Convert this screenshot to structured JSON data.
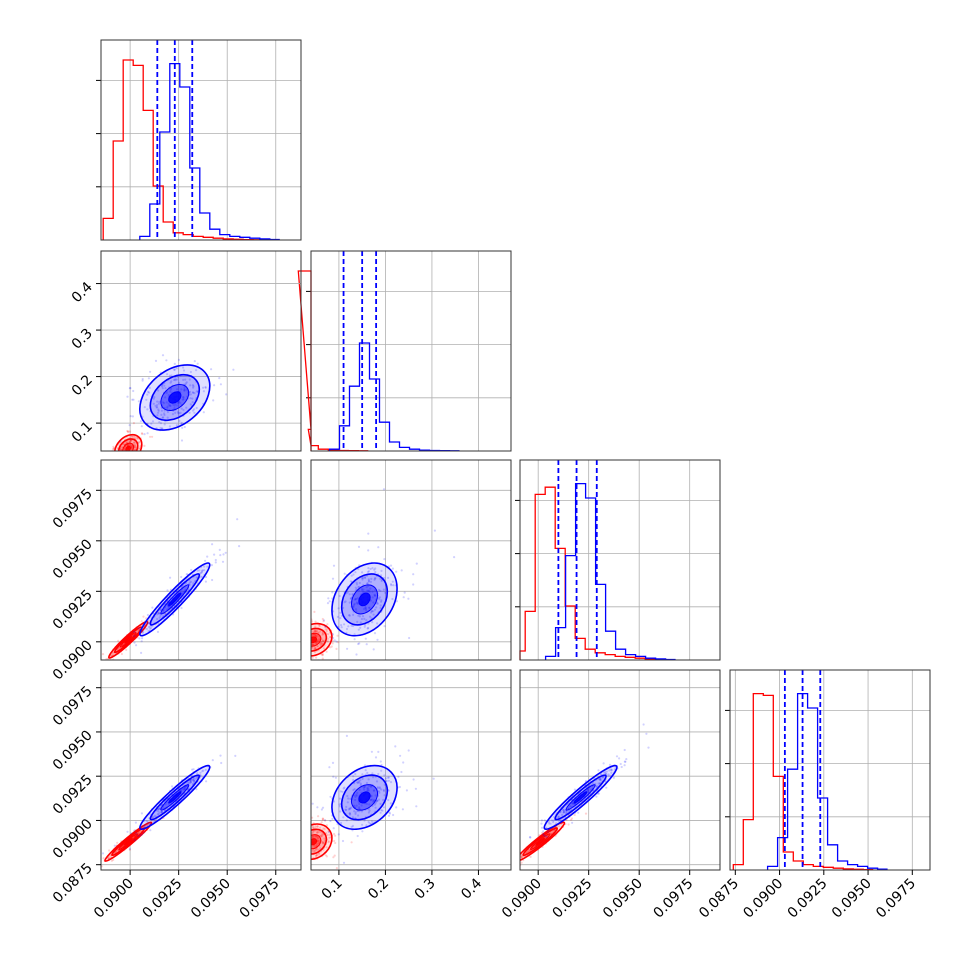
{
  "figure": {
    "type": "corner plot",
    "colors": {
      "red_series": "#ff0000",
      "blue_series": "#0000ff",
      "grid": "#b0b0b0",
      "frame": "#000000",
      "background": "#ffffff"
    }
  },
  "chart_data": {
    "type": "corner",
    "grid": true,
    "parameters": [
      {
        "index": 0,
        "range": [
          0.0885,
          0.0988
        ],
        "ticks": [
          "0.0900",
          "0.0925",
          "0.0950",
          "0.0975"
        ],
        "tick_values": [
          0.09,
          0.0925,
          0.095,
          0.0975
        ]
      },
      {
        "index": 1,
        "range": [
          0.04,
          0.47
        ],
        "ticks": [
          "0.1",
          "0.2",
          "0.3",
          "0.4"
        ],
        "tick_values": [
          0.1,
          0.2,
          0.3,
          0.4
        ]
      },
      {
        "index": 2,
        "range": [
          0.0891,
          0.099
        ],
        "ticks": [
          "0.0900",
          "0.0925",
          "0.0950",
          "0.0975"
        ],
        "tick_values": [
          0.09,
          0.0925,
          0.095,
          0.0975
        ]
      },
      {
        "index": 3,
        "range": [
          0.0872,
          0.0985
        ],
        "ticks": [
          "0.0875",
          "0.0900",
          "0.0925",
          "0.0950",
          "0.0975"
        ],
        "tick_values": [
          0.0875,
          0.09,
          0.0925,
          0.095,
          0.0975
        ]
      }
    ],
    "series": [
      {
        "color": "#ff0000",
        "centers": [
          0.0899,
          0.045,
          0.0901,
          0.0888
        ],
        "histograms": [
          {
            "values": [
              0.12,
              0.55,
              1.0,
              0.97,
              0.72,
              0.3,
              0.1,
              0.04,
              0.03,
              0.02,
              0.015,
              0.01,
              0.006,
              0.004,
              0.002,
              0.001
            ]
          },
          {
            "values": [
              1.0,
              0.12,
              0.03,
              0.01,
              0.005,
              0.003,
              0.002,
              0.001
            ]
          },
          {
            "values": [
              0.05,
              0.27,
              0.92,
              0.96,
              0.62,
              0.3,
              0.12,
              0.06,
              0.04,
              0.03,
              0.02,
              0.015,
              0.01,
              0.006,
              0.003
            ]
          },
          {
            "values": [
              0.03,
              0.28,
              0.98,
              0.97,
              0.52,
              0.1,
              0.05,
              0.03,
              0.02,
              0.015,
              0.01,
              0.006,
              0.004,
              0.002
            ]
          }
        ],
        "cov_2d": {
          "1_0": {
            "r": 0.3,
            "sx": 0.00035,
            "sy": 0.015
          },
          "2_0": {
            "r": 0.96,
            "sx": 0.0005,
            "sy": 0.00045
          },
          "2_1": {
            "r": 0.2,
            "sx": 0.02,
            "sy": 0.0004
          },
          "3_0": {
            "r": 0.97,
            "sx": 0.0006,
            "sy": 0.00055
          },
          "3_1": {
            "r": 0.2,
            "sx": 0.02,
            "sy": 0.0005
          },
          "3_2": {
            "r": 0.96,
            "sx": 0.0006,
            "sy": 0.00055
          }
        }
      },
      {
        "color": "#0000ff",
        "centers": [
          0.0923,
          0.155,
          0.0921,
          0.0913
        ],
        "quantiles": [
          [
            0.0914,
            0.0923,
            0.0932
          ],
          [
            0.11,
            0.15,
            0.18
          ],
          [
            0.091,
            0.0919,
            0.0929
          ],
          [
            0.0903,
            0.0913,
            0.0923
          ]
        ],
        "histograms": [
          {
            "values": [
              0.02,
              0.2,
              0.6,
              0.98,
              0.85,
              0.4,
              0.15,
              0.06,
              0.03,
              0.02,
              0.015,
              0.01,
              0.006,
              0.003
            ]
          },
          {
            "values": [
              0.01,
              0.14,
              0.36,
              0.6,
              0.4,
              0.16,
              0.05,
              0.02,
              0.01,
              0.005,
              0.003,
              0.002,
              0.001
            ]
          },
          {
            "values": [
              0.02,
              0.18,
              0.58,
              0.98,
              0.9,
              0.42,
              0.16,
              0.06,
              0.03,
              0.02,
              0.01,
              0.006,
              0.003
            ]
          },
          {
            "values": [
              0.02,
              0.18,
              0.56,
              0.98,
              0.9,
              0.4,
              0.14,
              0.05,
              0.03,
              0.02,
              0.01,
              0.005
            ]
          }
        ],
        "cov_2d": {
          "1_0": {
            "r": 0.35,
            "sx": 0.0009,
            "sy": 0.035
          },
          "2_0": {
            "r": 0.95,
            "sx": 0.0009,
            "sy": 0.0009
          },
          "2_1": {
            "r": 0.3,
            "sx": 0.035,
            "sy": 0.0009
          },
          "3_0": {
            "r": 0.95,
            "sx": 0.0009,
            "sy": 0.0009
          },
          "3_1": {
            "r": 0.3,
            "sx": 0.035,
            "sy": 0.0009
          },
          "3_2": {
            "r": 0.95,
            "sx": 0.0009,
            "sy": 0.0009
          }
        }
      }
    ]
  }
}
